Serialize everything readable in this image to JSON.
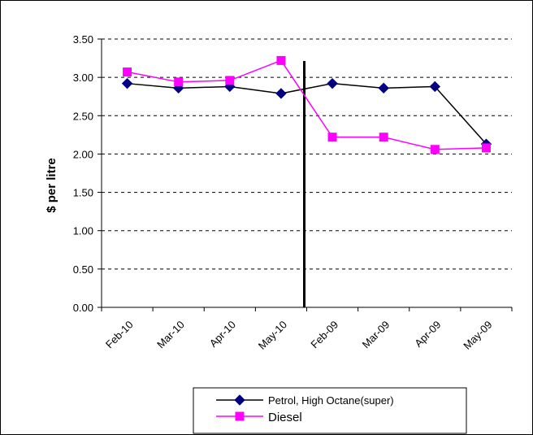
{
  "chart_data": {
    "type": "line",
    "title": "",
    "xlabel": "",
    "ylabel": "$ per litre",
    "categories": [
      "Feb-10",
      "Mar-10",
      "Apr-10",
      "May-10",
      "Feb-09",
      "Mar-09",
      "Apr-09",
      "May-09"
    ],
    "ylim": [
      0,
      3.5
    ],
    "yticks": [
      "0.00",
      "0.50",
      "1.00",
      "1.50",
      "2.00",
      "2.50",
      "3.00",
      "3.50"
    ],
    "grid": true,
    "legend_position": "bottom",
    "series": [
      {
        "name": "Petrol, High Octane(super)",
        "color": "#000080",
        "marker": "diamond",
        "values": [
          2.92,
          2.86,
          2.88,
          2.79,
          2.92,
          2.86,
          2.88,
          2.13
        ]
      },
      {
        "name": "Diesel",
        "color": "#ff00ff",
        "marker": "square",
        "values": [
          3.07,
          2.94,
          2.96,
          3.22,
          2.22,
          2.22,
          2.06,
          2.08
        ]
      }
    ],
    "divider_between_categories": [
      3,
      4
    ]
  }
}
